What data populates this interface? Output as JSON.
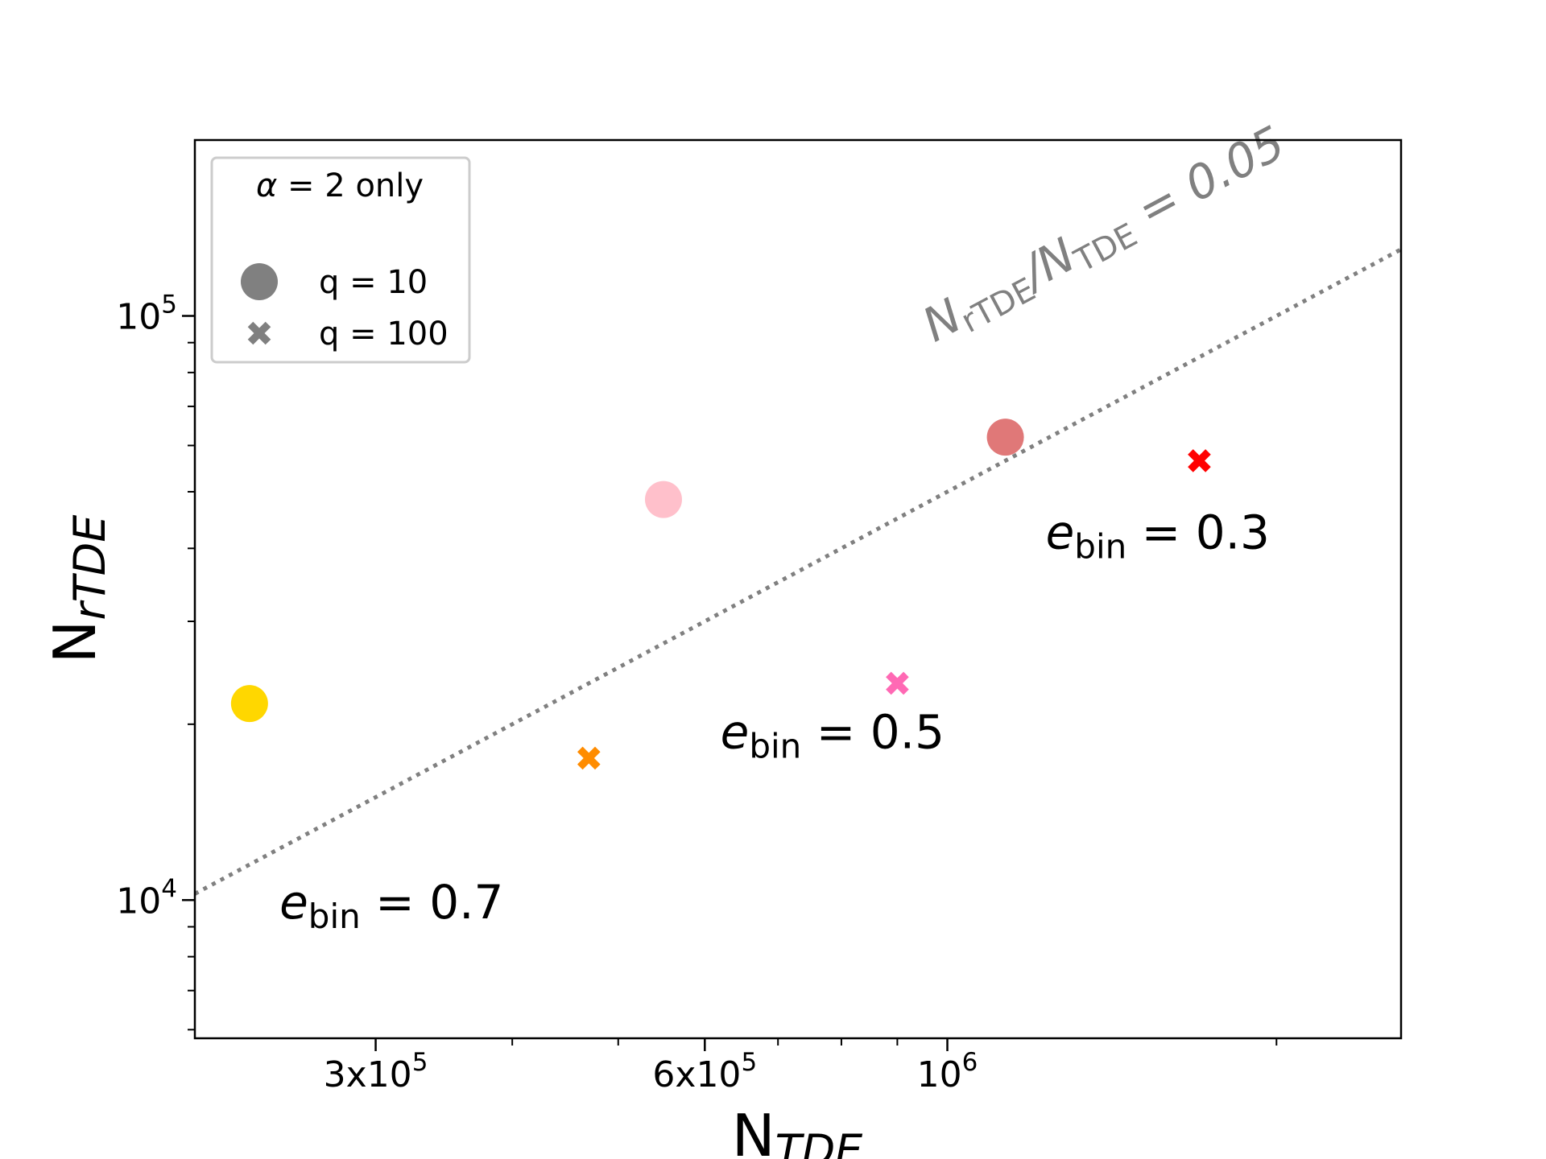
{
  "chart_data": {
    "type": "scatter",
    "xscale": "log",
    "yscale": "log",
    "xlim": [
      205000,
      2600000
    ],
    "ylim": [
      5800,
      200000
    ],
    "xlabel": {
      "main": "N",
      "sub": "TDE"
    },
    "ylabel": {
      "main": "N",
      "sub": "rTDE"
    },
    "x_ticks": [
      {
        "value": 300000,
        "base": "3x10",
        "exp": "5"
      },
      {
        "value": 600000,
        "base": "6x10",
        "exp": "5"
      },
      {
        "value": 1000000,
        "base": "10",
        "exp": "6"
      }
    ],
    "y_ticks": [
      {
        "value": 10000,
        "base": "10",
        "exp": "4"
      },
      {
        "value": 100000,
        "base": "10",
        "exp": "5"
      }
    ],
    "reference_line": {
      "ratio": 0.05,
      "style": "dotted",
      "color": "#808080",
      "label": {
        "num": "N",
        "num_sub": "rTDE",
        "slash": "/",
        "den": "N",
        "den_sub": "TDE",
        "eq": " = 0.05"
      }
    },
    "series": [
      {
        "name": "q = 10",
        "marker": "circle",
        "points": [
          {
            "x": 230000,
            "y": 21700,
            "color": "#FFD700"
          },
          {
            "x": 550000,
            "y": 48500,
            "color": "#FFC0CB"
          },
          {
            "x": 1130000,
            "y": 62000,
            "color": "#E07878"
          }
        ]
      },
      {
        "name": "q = 100",
        "marker": "x",
        "points": [
          {
            "x": 470000,
            "y": 17500,
            "color": "#FF8C00"
          },
          {
            "x": 900000,
            "y": 23500,
            "color": "#FF69B4"
          },
          {
            "x": 1700000,
            "y": 56500,
            "color": "#FF0000"
          }
        ]
      }
    ],
    "legend": {
      "position": "top-left",
      "title_symbol": "α",
      "title_rest": " = 2 only",
      "entries": [
        {
          "marker": "circle",
          "label": "q = 10",
          "color": "#808080"
        },
        {
          "marker": "x",
          "label": "q = 100",
          "color": "#808080"
        }
      ]
    },
    "annotations": [
      {
        "id": "e03",
        "var": "e",
        "sub": "bin",
        "rest": " = 0.3",
        "x": 1230000,
        "y": 40000
      },
      {
        "id": "e05",
        "var": "e",
        "sub": "bin",
        "rest": " = 0.5",
        "x": 620000,
        "y": 18200
      },
      {
        "id": "e07",
        "var": "e",
        "sub": "bin",
        "rest": " = 0.7",
        "x": 245000,
        "y": 9300
      }
    ]
  }
}
